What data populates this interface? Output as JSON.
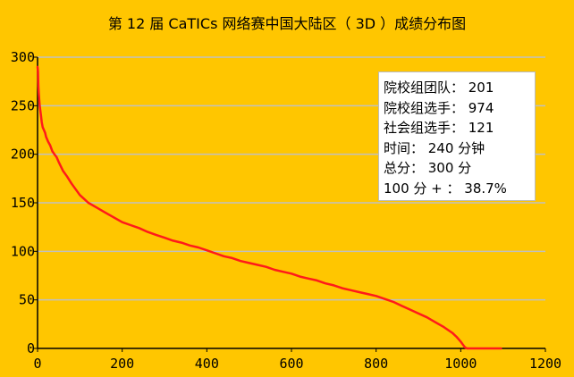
{
  "colors": {
    "background": "#FFC600",
    "line": "#FF1A1A",
    "grid": "#C0C0C0",
    "axis": "#000000",
    "info_box_bg": "#FFFFFF"
  },
  "chart_data": {
    "type": "line",
    "title": "第 12 届 CaTICs 网络赛中国大陆区（ 3D ）成绩分布图",
    "xlabel": "",
    "ylabel": "",
    "xlim": [
      0,
      1200
    ],
    "ylim": [
      0,
      300
    ],
    "x_ticks": [
      "0",
      "200",
      "400",
      "600",
      "800",
      "1000",
      "1200"
    ],
    "y_ticks": [
      "0",
      "50",
      "100",
      "150",
      "200",
      "250",
      "300"
    ],
    "grid": "horizontal",
    "legend": "none",
    "series": [
      {
        "x": [
          0,
          1,
          2,
          3,
          5,
          8,
          10,
          12,
          15,
          18,
          20,
          25,
          30,
          35,
          40,
          45,
          50,
          60,
          70,
          80,
          90,
          100,
          110,
          120,
          140,
          160,
          180,
          200,
          220,
          240,
          260,
          280,
          300,
          320,
          340,
          360,
          380,
          400,
          420,
          440,
          460,
          480,
          500,
          520,
          540,
          560,
          580,
          600,
          620,
          640,
          660,
          680,
          700,
          720,
          740,
          760,
          780,
          800,
          820,
          840,
          860,
          880,
          900,
          920,
          940,
          960,
          980,
          990,
          1000,
          1005,
          1010,
          1015,
          1020,
          1030,
          1050,
          1070,
          1095
        ],
        "y": [
          290,
          285,
          270,
          262,
          250,
          240,
          233,
          228,
          225,
          222,
          218,
          213,
          209,
          203,
          200,
          197,
          192,
          183,
          177,
          170,
          164,
          158,
          154,
          150,
          145,
          140,
          135,
          130,
          127,
          124,
          120,
          117,
          114,
          111,
          109,
          106,
          104,
          101,
          98,
          95,
          93,
          90,
          88,
          86,
          84,
          81,
          79,
          77,
          74,
          72,
          70,
          67,
          65,
          62,
          60,
          58,
          56,
          54,
          51,
          48,
          44,
          40,
          36,
          32,
          27,
          22,
          16,
          12,
          7,
          4,
          1,
          0,
          0,
          0,
          0,
          0,
          0
        ]
      }
    ]
  },
  "info_box": {
    "lines": [
      "院校组团队： 201",
      "院校组选手： 974",
      "社会组选手： 121",
      "时间： 240 分钟",
      "总分： 300 分",
      "100 分 + ： 38.7%"
    ]
  }
}
